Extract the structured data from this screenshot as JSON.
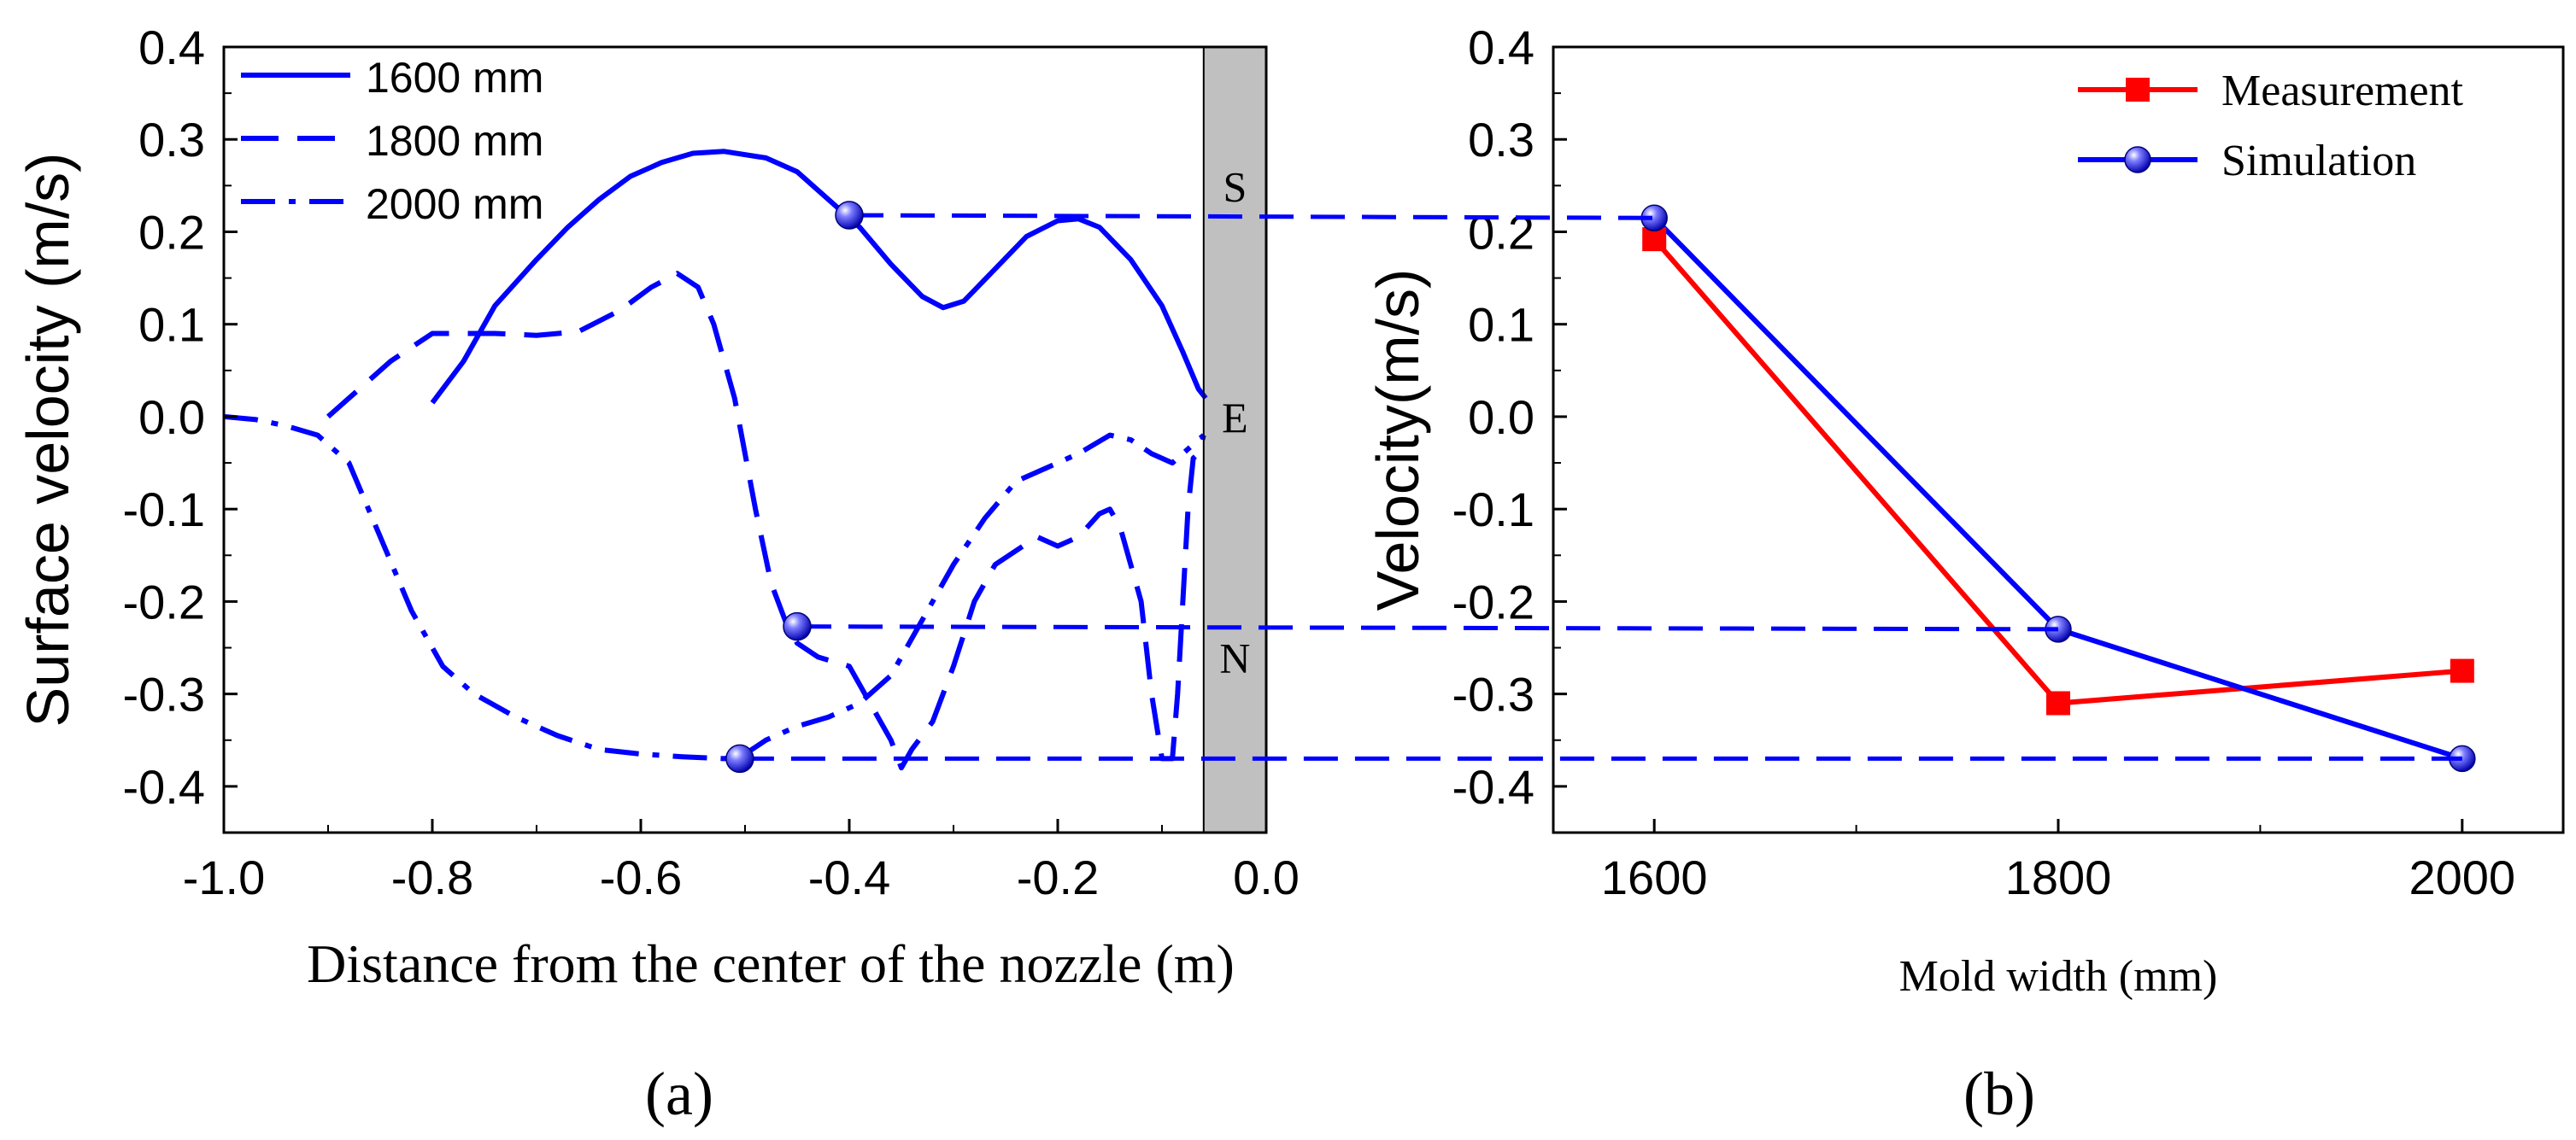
{
  "chart_data": [
    {
      "id": "a",
      "type": "line",
      "panel_label": "(a)",
      "title": "",
      "xlabel": "Distance from the center of the nozzle (m)",
      "ylabel": "Surface velocity (m/s)",
      "xlim": [
        -1.0,
        0.0
      ],
      "ylim": [
        -0.45,
        0.4
      ],
      "xticks": [
        "-1.0",
        "-0.8",
        "-0.6",
        "-0.4",
        "-0.2",
        "0.0"
      ],
      "xtick_values": [
        -1.0,
        -0.8,
        -0.6,
        -0.4,
        -0.2,
        0.0
      ],
      "yticks": [
        "-0.4",
        "-0.3",
        "-0.2",
        "-0.1",
        "0.0",
        "0.1",
        "0.2",
        "0.3",
        "0.4"
      ],
      "ytick_values": [
        -0.4,
        -0.3,
        -0.2,
        -0.1,
        0.0,
        0.1,
        0.2,
        0.3,
        0.4
      ],
      "legend_position": "top-left",
      "shaded_band": {
        "x": [
          -0.06,
          0.0
        ],
        "color": "#c0c0c0"
      },
      "band_labels": [
        {
          "text": "S",
          "y": 0.25
        },
        {
          "text": "E",
          "y": 0.0
        },
        {
          "text": "N",
          "y": -0.26
        }
      ],
      "series": [
        {
          "name": "1600 mm",
          "style": "solid",
          "color": "#0000ff",
          "points": [
            [
              -0.8,
              0.015
            ],
            [
              -0.77,
              0.06
            ],
            [
              -0.74,
              0.12
            ],
            [
              -0.7,
              0.17
            ],
            [
              -0.67,
              0.205
            ],
            [
              -0.64,
              0.235
            ],
            [
              -0.61,
              0.26
            ],
            [
              -0.58,
              0.275
            ],
            [
              -0.55,
              0.285
            ],
            [
              -0.52,
              0.287
            ],
            [
              -0.48,
              0.28
            ],
            [
              -0.45,
              0.265
            ],
            [
              -0.42,
              0.235
            ],
            [
              -0.39,
              0.205
            ],
            [
              -0.36,
              0.165
            ],
            [
              -0.33,
              0.13
            ],
            [
              -0.31,
              0.118
            ],
            [
              -0.29,
              0.125
            ],
            [
              -0.26,
              0.16
            ],
            [
              -0.23,
              0.195
            ],
            [
              -0.2,
              0.212
            ],
            [
              -0.18,
              0.214
            ],
            [
              -0.16,
              0.205
            ],
            [
              -0.13,
              0.17
            ],
            [
              -0.1,
              0.12
            ],
            [
              -0.08,
              0.07
            ],
            [
              -0.065,
              0.03
            ],
            [
              -0.058,
              0.02
            ]
          ],
          "marker": {
            "x": -0.4,
            "y": 0.218
          }
        },
        {
          "name": "1800 mm",
          "style": "dashed",
          "color": "#0000ff",
          "points": [
            [
              -0.9,
              0.0
            ],
            [
              -0.88,
              0.02
            ],
            [
              -0.84,
              0.06
            ],
            [
              -0.8,
              0.09
            ],
            [
              -0.74,
              0.09
            ],
            [
              -0.7,
              0.088
            ],
            [
              -0.66,
              0.092
            ],
            [
              -0.62,
              0.115
            ],
            [
              -0.59,
              0.14
            ],
            [
              -0.565,
              0.155
            ],
            [
              -0.545,
              0.14
            ],
            [
              -0.53,
              0.1
            ],
            [
              -0.51,
              0.02
            ],
            [
              -0.49,
              -0.1
            ],
            [
              -0.475,
              -0.18
            ],
            [
              -0.46,
              -0.225
            ],
            [
              -0.45,
              -0.245
            ],
            [
              -0.43,
              -0.26
            ],
            [
              -0.4,
              -0.27
            ],
            [
              -0.38,
              -0.31
            ],
            [
              -0.36,
              -0.35
            ],
            [
              -0.35,
              -0.38
            ],
            [
              -0.34,
              -0.36
            ],
            [
              -0.32,
              -0.33
            ],
            [
              -0.3,
              -0.27
            ],
            [
              -0.28,
              -0.2
            ],
            [
              -0.26,
              -0.16
            ],
            [
              -0.24,
              -0.145
            ],
            [
              -0.22,
              -0.13
            ],
            [
              -0.2,
              -0.14
            ],
            [
              -0.18,
              -0.13
            ],
            [
              -0.16,
              -0.105
            ],
            [
              -0.15,
              -0.1
            ],
            [
              -0.14,
              -0.12
            ],
            [
              -0.12,
              -0.2
            ],
            [
              -0.11,
              -0.3
            ],
            [
              -0.1,
              -0.37
            ],
            [
              -0.09,
              -0.37
            ],
            [
              -0.085,
              -0.3
            ],
            [
              -0.08,
              -0.2
            ],
            [
              -0.075,
              -0.1
            ],
            [
              -0.07,
              -0.045
            ],
            [
              -0.065,
              -0.04
            ],
            [
              -0.06,
              -0.02
            ]
          ],
          "marker": {
            "x": -0.45,
            "y": -0.227
          }
        },
        {
          "name": "2000 mm",
          "style": "dash-dot",
          "color": "#0000ff",
          "points": [
            [
              -1.0,
              0.0
            ],
            [
              -0.97,
              -0.003
            ],
            [
              -0.94,
              -0.01
            ],
            [
              -0.91,
              -0.02
            ],
            [
              -0.88,
              -0.05
            ],
            [
              -0.85,
              -0.13
            ],
            [
              -0.82,
              -0.21
            ],
            [
              -0.79,
              -0.27
            ],
            [
              -0.76,
              -0.3
            ],
            [
              -0.72,
              -0.325
            ],
            [
              -0.68,
              -0.345
            ],
            [
              -0.64,
              -0.36
            ],
            [
              -0.6,
              -0.365
            ],
            [
              -0.56,
              -0.368
            ],
            [
              -0.52,
              -0.37
            ],
            [
              -0.5,
              -0.365
            ],
            [
              -0.48,
              -0.35
            ],
            [
              -0.45,
              -0.335
            ],
            [
              -0.42,
              -0.325
            ],
            [
              -0.39,
              -0.31
            ],
            [
              -0.36,
              -0.28
            ],
            [
              -0.33,
              -0.22
            ],
            [
              -0.3,
              -0.16
            ],
            [
              -0.27,
              -0.11
            ],
            [
              -0.24,
              -0.07
            ],
            [
              -0.21,
              -0.055
            ],
            [
              -0.18,
              -0.04
            ],
            [
              -0.15,
              -0.02
            ],
            [
              -0.13,
              -0.025
            ],
            [
              -0.11,
              -0.04
            ],
            [
              -0.09,
              -0.05
            ],
            [
              -0.07,
              -0.03
            ],
            [
              -0.06,
              -0.02
            ]
          ],
          "marker": {
            "x": -0.505,
            "y": -0.37
          }
        }
      ]
    },
    {
      "id": "b",
      "type": "line",
      "panel_label": "(b)",
      "title": "",
      "xlabel": "Mold width (mm)",
      "ylabel": "Velocity(m/s)",
      "xlim": [
        1550,
        2050
      ],
      "ylim": [
        -0.45,
        0.4
      ],
      "xticks": [
        "1600",
        "1800",
        "2000"
      ],
      "xtick_values": [
        1600,
        1800,
        2000
      ],
      "yticks": [
        "-0.4",
        "-0.3",
        "-0.2",
        "-0.1",
        "0.0",
        "0.1",
        "0.2",
        "0.3",
        "0.4"
      ],
      "ytick_values": [
        -0.4,
        -0.3,
        -0.2,
        -0.1,
        0.0,
        0.1,
        0.2,
        0.3,
        0.4
      ],
      "legend_position": "top-right",
      "categories": [
        1600,
        1800,
        2000
      ],
      "series": [
        {
          "name": "Measurement",
          "color": "#ff0000",
          "marker": "square",
          "values": [
            0.192,
            -0.31,
            -0.275
          ]
        },
        {
          "name": "Simulation",
          "color": "#0000ff",
          "marker": "sphere",
          "values": [
            0.215,
            -0.23,
            -0.37
          ]
        }
      ]
    }
  ],
  "connectors": {
    "color": "#0000ff",
    "style": "dashed",
    "links": [
      {
        "from": {
          "x": -0.4,
          "y": 0.218
        },
        "to": {
          "x": 1600,
          "y": 0.215
        }
      },
      {
        "from": {
          "x": -0.45,
          "y": -0.227
        },
        "to": {
          "x": 1800,
          "y": -0.23
        }
      },
      {
        "from": {
          "x": -0.505,
          "y": -0.37
        },
        "to": {
          "x": 2000,
          "y": -0.37
        }
      }
    ]
  },
  "colors": {
    "axis": "#000000",
    "band": "#c0c0c0",
    "blue": "#0000ff",
    "red": "#ff0000"
  }
}
